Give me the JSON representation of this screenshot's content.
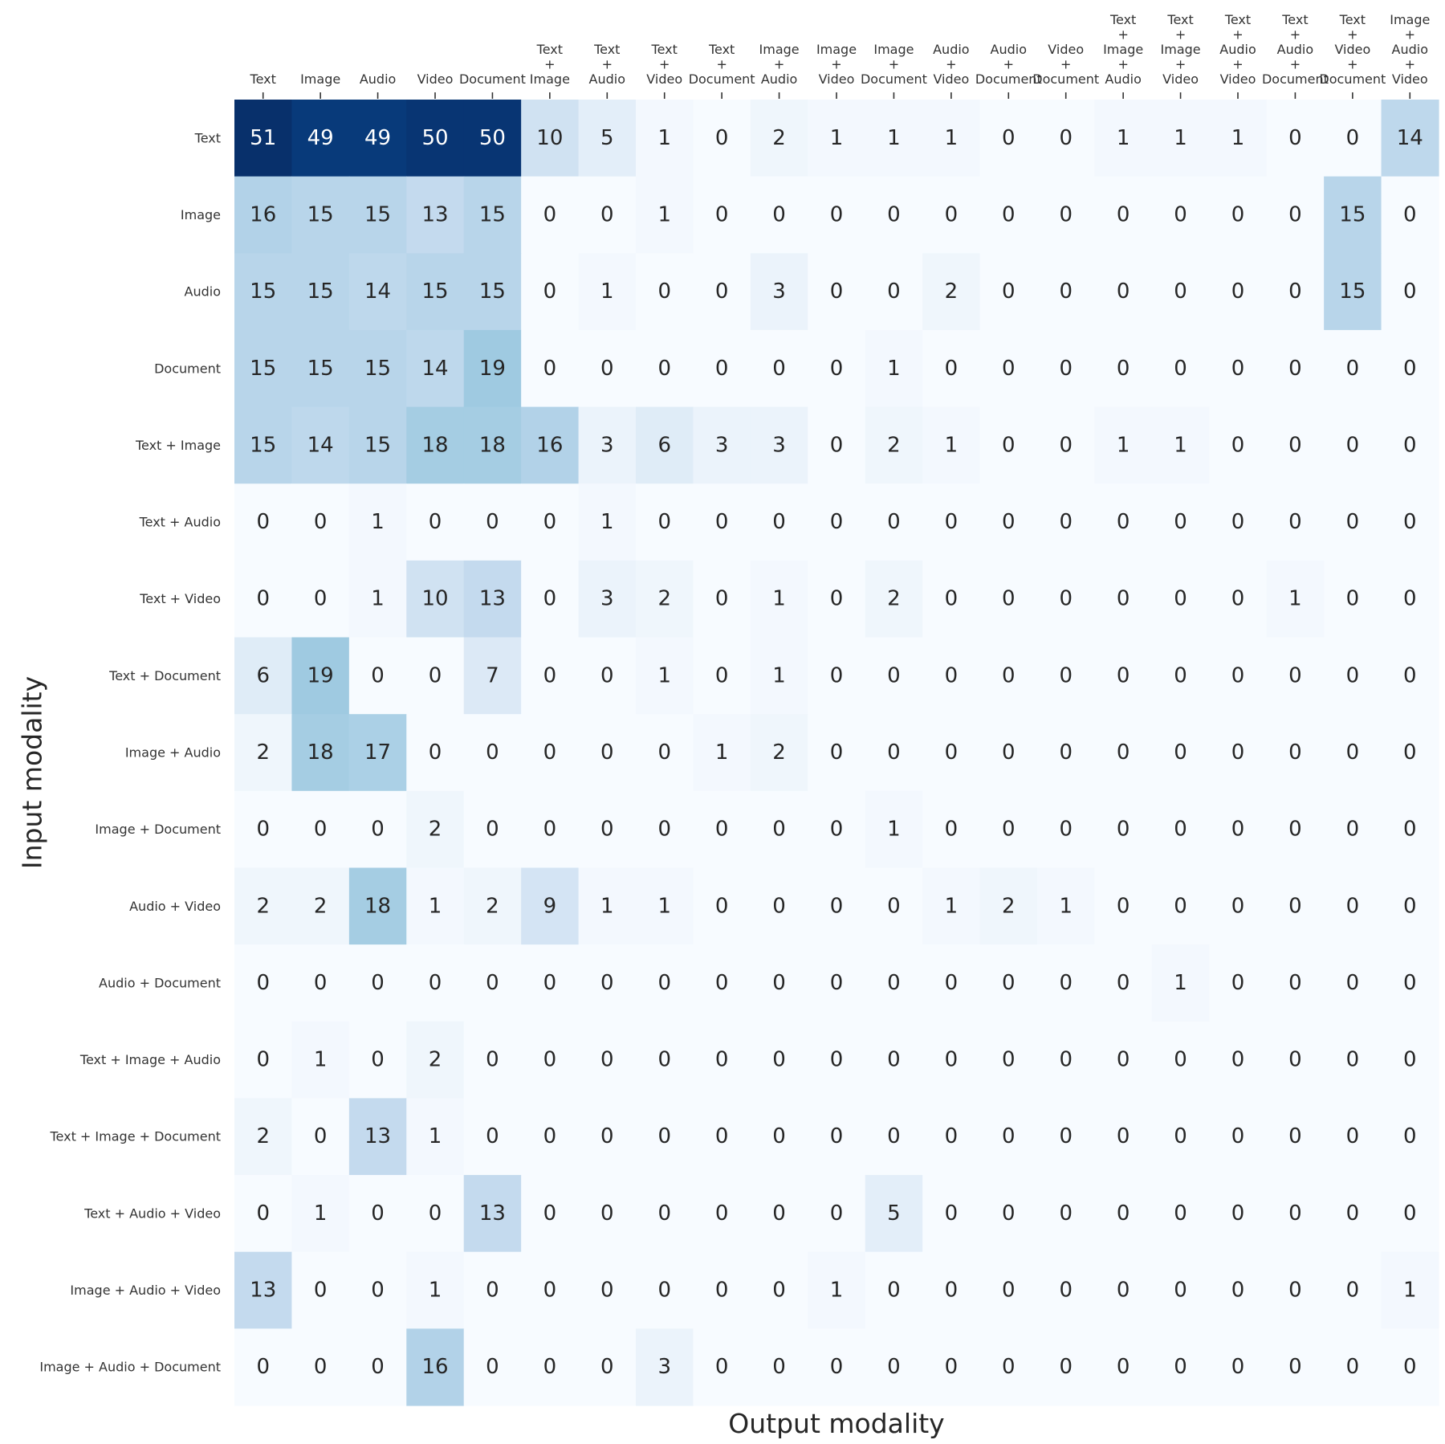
{
  "chart_data": {
    "type": "heatmap",
    "xlabel": "Output modality",
    "ylabel": "Input modality",
    "colormap": "Blues",
    "value_range": [
      0,
      51
    ],
    "x_categories": [
      "Text",
      "Image",
      "Audio",
      "Video",
      "Document",
      "Text + Image",
      "Text + Audio",
      "Text + Video",
      "Text + Document",
      "Image + Audio",
      "Image + Video",
      "Image + Document",
      "Audio + Video",
      "Audio + Document",
      "Video + Document",
      "Text + Image + Audio",
      "Text + Image + Video",
      "Text + Audio + Video",
      "Text + Audio + Document",
      "Text + Video + Document",
      "Image + Audio + Video"
    ],
    "y_categories": [
      "Text",
      "Image",
      "Audio",
      "Document",
      "Text + Image",
      "Text + Audio",
      "Text + Video",
      "Text + Document",
      "Image + Audio",
      "Image + Document",
      "Audio + Video",
      "Audio + Document",
      "Text + Image + Audio",
      "Text + Image + Document",
      "Text + Audio + Video",
      "Image + Audio + Video",
      "Image + Audio + Document"
    ],
    "values": [
      [
        51,
        49,
        49,
        50,
        50,
        10,
        5,
        1,
        0,
        2,
        1,
        1,
        1,
        0,
        0,
        1,
        1,
        1,
        0,
        0,
        14
      ],
      [
        16,
        15,
        15,
        13,
        15,
        0,
        0,
        1,
        0,
        0,
        0,
        0,
        0,
        0,
        0,
        0,
        0,
        0,
        0,
        15,
        0
      ],
      [
        15,
        15,
        14,
        15,
        15,
        0,
        1,
        0,
        0,
        3,
        0,
        0,
        2,
        0,
        0,
        0,
        0,
        0,
        0,
        15,
        0
      ],
      [
        15,
        15,
        15,
        14,
        19,
        0,
        0,
        0,
        0,
        0,
        0,
        1,
        0,
        0,
        0,
        0,
        0,
        0,
        0,
        0,
        0
      ],
      [
        15,
        14,
        15,
        18,
        18,
        16,
        3,
        6,
        3,
        3,
        0,
        2,
        1,
        0,
        0,
        1,
        1,
        0,
        0,
        0,
        0
      ],
      [
        0,
        0,
        1,
        0,
        0,
        0,
        1,
        0,
        0,
        0,
        0,
        0,
        0,
        0,
        0,
        0,
        0,
        0,
        0,
        0,
        0
      ],
      [
        0,
        0,
        1,
        10,
        13,
        0,
        3,
        2,
        0,
        1,
        0,
        2,
        0,
        0,
        0,
        0,
        0,
        0,
        1,
        0,
        0
      ],
      [
        6,
        19,
        0,
        0,
        7,
        0,
        0,
        1,
        0,
        1,
        0,
        0,
        0,
        0,
        0,
        0,
        0,
        0,
        0,
        0,
        0
      ],
      [
        2,
        18,
        17,
        0,
        0,
        0,
        0,
        0,
        1,
        2,
        0,
        0,
        0,
        0,
        0,
        0,
        0,
        0,
        0,
        0,
        0
      ],
      [
        0,
        0,
        0,
        2,
        0,
        0,
        0,
        0,
        0,
        0,
        0,
        1,
        0,
        0,
        0,
        0,
        0,
        0,
        0,
        0,
        0
      ],
      [
        2,
        2,
        18,
        1,
        2,
        9,
        1,
        1,
        0,
        0,
        0,
        0,
        1,
        2,
        1,
        0,
        0,
        0,
        0,
        0,
        0
      ],
      [
        0,
        0,
        0,
        0,
        0,
        0,
        0,
        0,
        0,
        0,
        0,
        0,
        0,
        0,
        0,
        0,
        1,
        0,
        0,
        0,
        0
      ],
      [
        0,
        1,
        0,
        2,
        0,
        0,
        0,
        0,
        0,
        0,
        0,
        0,
        0,
        0,
        0,
        0,
        0,
        0,
        0,
        0,
        0
      ],
      [
        2,
        0,
        13,
        1,
        0,
        0,
        0,
        0,
        0,
        0,
        0,
        0,
        0,
        0,
        0,
        0,
        0,
        0,
        0,
        0,
        0
      ],
      [
        0,
        1,
        0,
        0,
        13,
        0,
        0,
        0,
        0,
        0,
        0,
        5,
        0,
        0,
        0,
        0,
        0,
        0,
        0,
        0,
        0
      ],
      [
        13,
        0,
        0,
        1,
        0,
        0,
        0,
        0,
        0,
        0,
        1,
        0,
        0,
        0,
        0,
        0,
        0,
        0,
        0,
        0,
        1
      ],
      [
        0,
        0,
        0,
        16,
        0,
        0,
        0,
        3,
        0,
        0,
        0,
        0,
        0,
        0,
        0,
        0,
        0,
        0,
        0,
        0,
        0
      ]
    ],
    "grid": false,
    "colorbar": false
  }
}
